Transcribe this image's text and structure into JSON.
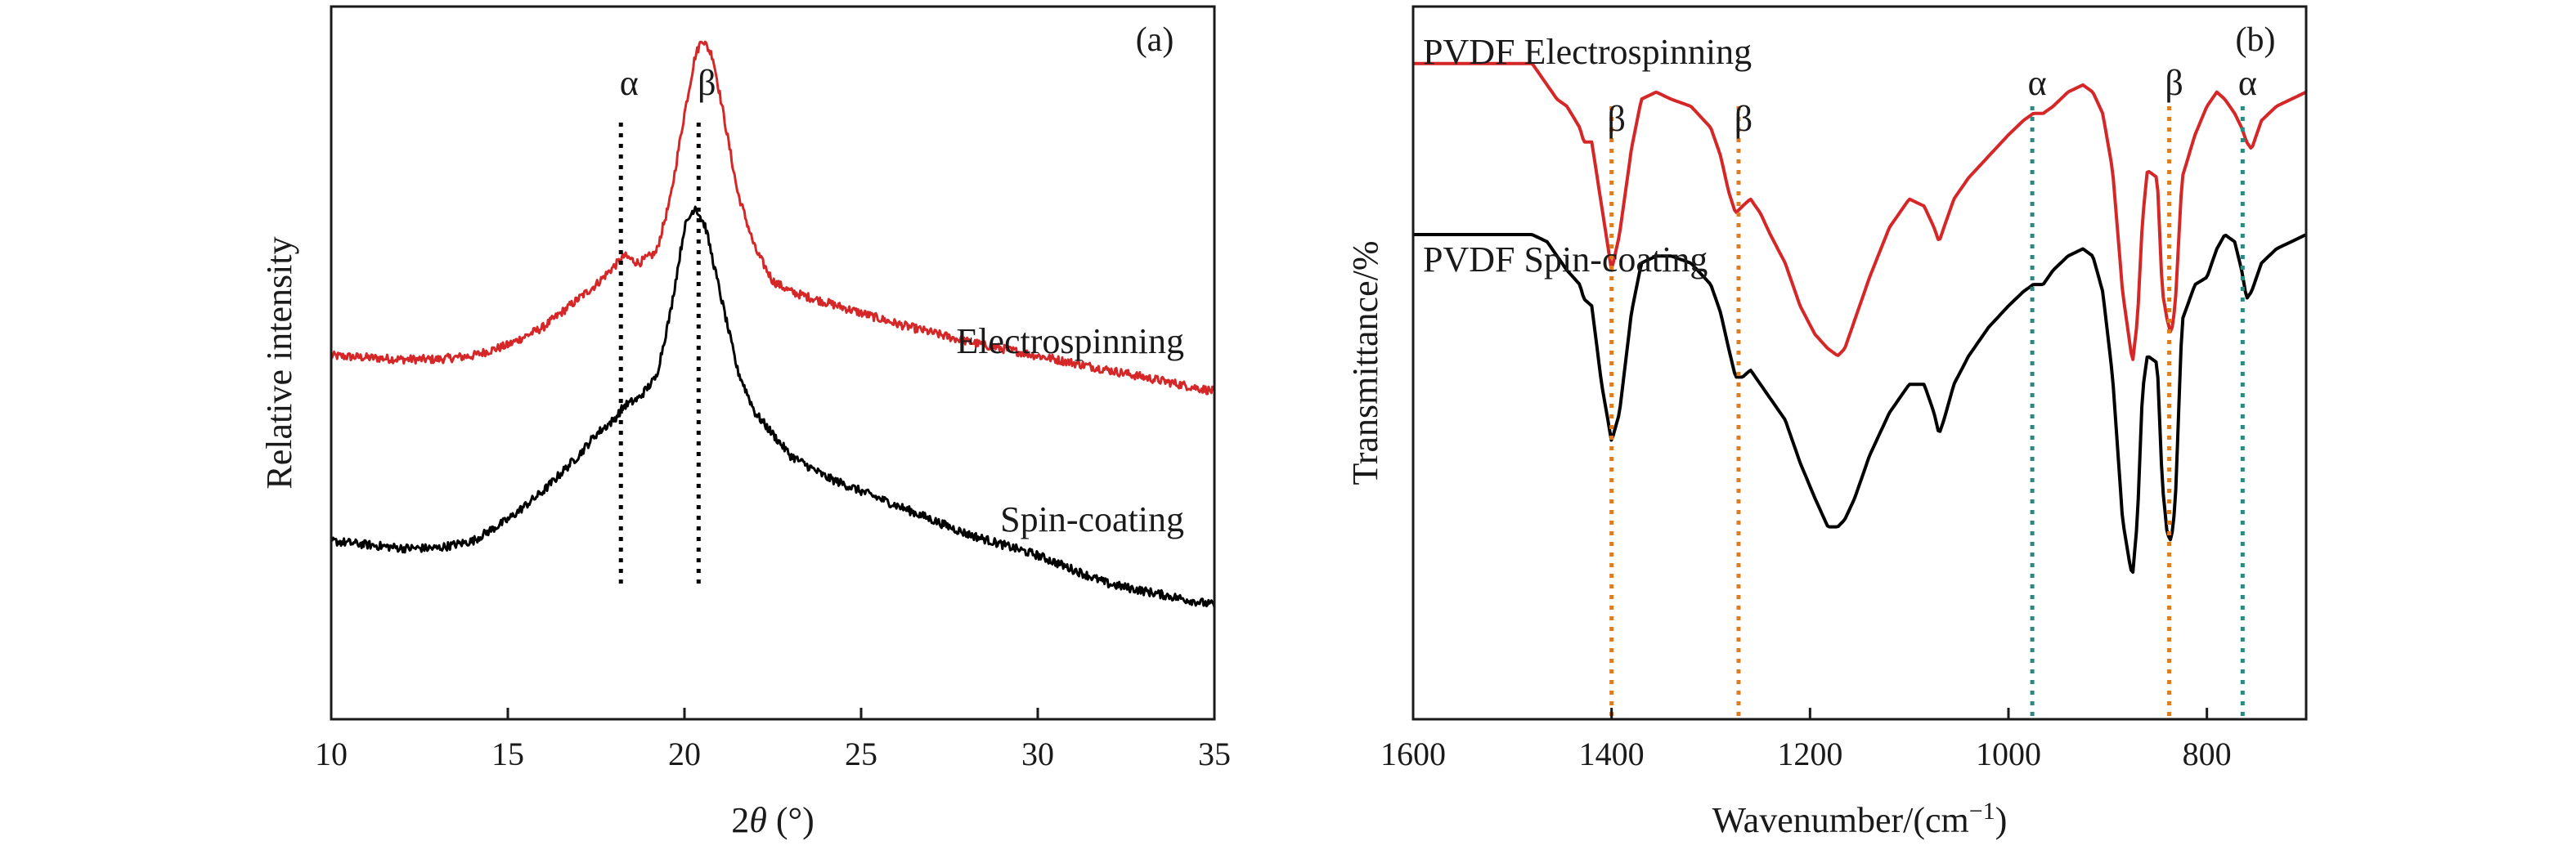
{
  "chart_data": [
    {
      "panel": "(a)",
      "type": "line",
      "xlabel_pre": "2",
      "xlabel_theta": "θ",
      "xlabel_post": " (°)",
      "ylabel": "Relative intensity",
      "xlim": [
        10,
        35
      ],
      "ylim": [
        0,
        1
      ],
      "xticks": [
        10,
        15,
        20,
        25,
        30,
        35
      ],
      "yticks_shown": false,
      "series": [
        {
          "name": "Electrospinning",
          "color": "#d62728",
          "x": [
            10,
            12,
            13,
            14,
            15,
            16,
            17,
            17.5,
            18.0,
            18.3,
            18.7,
            19.2,
            19.6,
            20.0,
            20.3,
            20.5,
            20.8,
            21.1,
            21.5,
            22,
            22.5,
            23,
            24,
            25,
            26,
            28,
            30,
            32,
            35
          ],
          "values": [
            0.51,
            0.505,
            0.505,
            0.51,
            0.525,
            0.55,
            0.59,
            0.61,
            0.635,
            0.65,
            0.64,
            0.655,
            0.73,
            0.85,
            0.93,
            0.955,
            0.93,
            0.85,
            0.74,
            0.66,
            0.615,
            0.6,
            0.585,
            0.57,
            0.555,
            0.53,
            0.51,
            0.49,
            0.46
          ]
        },
        {
          "name": "Spin-coating",
          "color": "#000000",
          "x": [
            10,
            12,
            13,
            14,
            15,
            16,
            17,
            17.5,
            18.0,
            18.3,
            18.7,
            19.2,
            19.6,
            20.0,
            20.3,
            20.6,
            21.0,
            21.5,
            22,
            23,
            24,
            25,
            26,
            27,
            28,
            30,
            32,
            35
          ],
          "values": [
            0.25,
            0.24,
            0.24,
            0.25,
            0.28,
            0.32,
            0.37,
            0.4,
            0.42,
            0.44,
            0.45,
            0.48,
            0.57,
            0.69,
            0.72,
            0.69,
            0.6,
            0.49,
            0.43,
            0.37,
            0.34,
            0.32,
            0.3,
            0.28,
            0.26,
            0.23,
            0.19,
            0.16
          ]
        }
      ],
      "annotations": [
        {
          "label": "α",
          "x": 18.2,
          "line_color": "#000000"
        },
        {
          "label": "β",
          "x": 20.4,
          "line_color": "#000000"
        }
      ]
    },
    {
      "panel": "(b)",
      "type": "line",
      "xlabel": "Wavenumber/(cm",
      "xlabel_sup": "−1",
      "xlabel_close": ")",
      "ylabel": "Transmittance/%",
      "xlim": [
        1600,
        700
      ],
      "ylim": [
        0,
        1
      ],
      "xticks": [
        1600,
        1400,
        1200,
        1000,
        800
      ],
      "yticks_shown": false,
      "series": [
        {
          "name": "PVDF Electrospinning",
          "color": "#d62728",
          "x": [
            1600,
            1480,
            1465,
            1455,
            1445,
            1432,
            1428,
            1420,
            1410,
            1400,
            1392,
            1380,
            1370,
            1355,
            1340,
            1320,
            1300,
            1290,
            1282,
            1275,
            1268,
            1260,
            1250,
            1240,
            1225,
            1210,
            1195,
            1182,
            1172,
            1165,
            1155,
            1140,
            1120,
            1100,
            1085,
            1075,
            1070,
            1065,
            1055,
            1040,
            1020,
            1000,
            985,
            975,
            965,
            955,
            940,
            925,
            915,
            905,
            895,
            885,
            878,
            875,
            870,
            865,
            860,
            850,
            845,
            840,
            836,
            832,
            825,
            812,
            800,
            790,
            782,
            772,
            765,
            760,
            755,
            745,
            730,
            715,
            700
          ],
          "values": [
            0.92,
            0.92,
            0.89,
            0.87,
            0.86,
            0.83,
            0.81,
            0.81,
            0.72,
            0.63,
            0.68,
            0.8,
            0.87,
            0.88,
            0.87,
            0.86,
            0.83,
            0.79,
            0.74,
            0.71,
            0.72,
            0.73,
            0.71,
            0.68,
            0.64,
            0.58,
            0.54,
            0.52,
            0.51,
            0.52,
            0.56,
            0.62,
            0.69,
            0.73,
            0.72,
            0.69,
            0.67,
            0.69,
            0.73,
            0.76,
            0.79,
            0.82,
            0.84,
            0.85,
            0.85,
            0.86,
            0.88,
            0.89,
            0.88,
            0.85,
            0.77,
            0.6,
            0.53,
            0.5,
            0.56,
            0.7,
            0.77,
            0.76,
            0.6,
            0.56,
            0.54,
            0.58,
            0.76,
            0.82,
            0.86,
            0.88,
            0.87,
            0.85,
            0.83,
            0.81,
            0.8,
            0.84,
            0.86,
            0.87,
            0.88
          ]
        },
        {
          "name": "PVDF Spin-coating",
          "color": "#000000",
          "x": [
            1600,
            1480,
            1465,
            1455,
            1445,
            1432,
            1428,
            1420,
            1410,
            1400,
            1392,
            1380,
            1370,
            1355,
            1340,
            1320,
            1300,
            1290,
            1282,
            1275,
            1268,
            1260,
            1250,
            1240,
            1225,
            1210,
            1195,
            1182,
            1172,
            1165,
            1155,
            1140,
            1120,
            1100,
            1085,
            1075,
            1070,
            1065,
            1055,
            1040,
            1020,
            1000,
            985,
            975,
            965,
            955,
            940,
            925,
            915,
            905,
            895,
            885,
            878,
            875,
            870,
            865,
            860,
            850,
            845,
            840,
            836,
            832,
            825,
            812,
            800,
            790,
            782,
            772,
            765,
            760,
            755,
            745,
            730,
            715,
            700
          ],
          "values": [
            0.68,
            0.68,
            0.67,
            0.65,
            0.63,
            0.61,
            0.59,
            0.58,
            0.47,
            0.39,
            0.43,
            0.57,
            0.64,
            0.65,
            0.65,
            0.64,
            0.61,
            0.57,
            0.52,
            0.48,
            0.48,
            0.49,
            0.47,
            0.45,
            0.42,
            0.36,
            0.31,
            0.27,
            0.27,
            0.28,
            0.31,
            0.37,
            0.43,
            0.47,
            0.47,
            0.43,
            0.4,
            0.42,
            0.47,
            0.51,
            0.55,
            0.58,
            0.6,
            0.61,
            0.61,
            0.63,
            0.65,
            0.66,
            0.65,
            0.6,
            0.48,
            0.28,
            0.22,
            0.2,
            0.28,
            0.46,
            0.51,
            0.5,
            0.33,
            0.26,
            0.25,
            0.3,
            0.56,
            0.61,
            0.62,
            0.66,
            0.68,
            0.67,
            0.63,
            0.59,
            0.6,
            0.64,
            0.66,
            0.67,
            0.68
          ]
        }
      ],
      "annotations": [
        {
          "label": "β",
          "x": 1400,
          "line_color": "#e07b20"
        },
        {
          "label": "β",
          "x": 1272,
          "line_color": "#e07b20"
        },
        {
          "label": "α",
          "x": 976,
          "line_color": "#2a8a80"
        },
        {
          "label": "β",
          "x": 838,
          "line_color": "#e07b20"
        },
        {
          "label": "α",
          "x": 764,
          "line_color": "#2a8a80"
        }
      ]
    }
  ]
}
